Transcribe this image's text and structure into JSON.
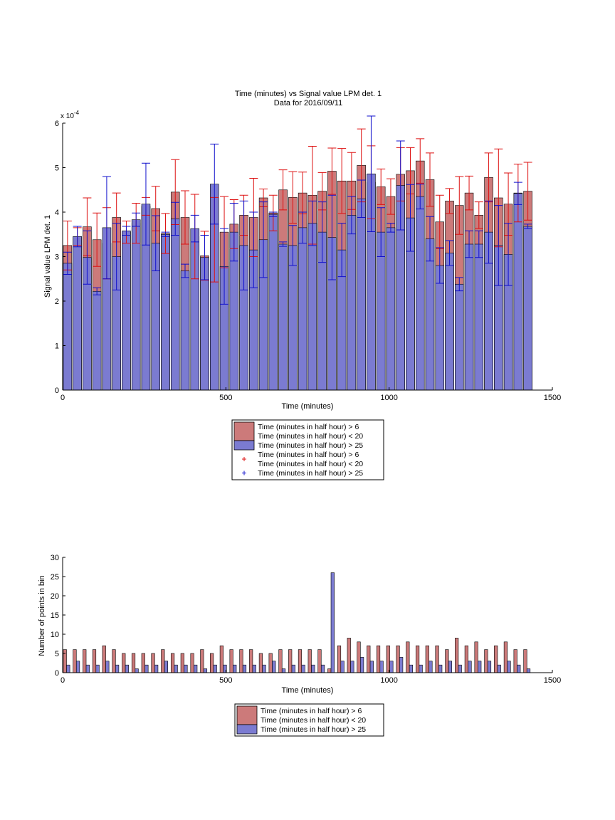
{
  "chart_data": [
    {
      "type": "bar",
      "title": "Time (minutes) vs Signal value LPM det. 1",
      "subtitle": "Data for 2016/09/11",
      "xlabel": "Time (minutes)",
      "ylabel": "Signal value LPM det. 1",
      "exponent_label": "x 10",
      "exponent_power": "-4",
      "xlim": [
        0,
        1500
      ],
      "ylim": [
        0,
        6
      ],
      "y_scale": 0.0001,
      "xticks": [
        "0",
        "500",
        "1000",
        "1500"
      ],
      "yticks": [
        "0",
        "1",
        "2",
        "3",
        "4",
        "5",
        "6"
      ],
      "grid": false,
      "legend_position": "below",
      "legend": [
        {
          "label_lines": [
            "Time (minutes in half hour) > 6",
            "Time (minutes in half hour) < 20"
          ],
          "color": "#cc7a7a",
          "kind": "bar"
        },
        {
          "label_lines": [
            "Time (minutes in half hour) > 25"
          ],
          "color": "#7b7bd1",
          "kind": "bar"
        },
        {
          "label_lines": [
            "Time (minutes in half hour) > 6",
            "Time (minutes in half hour) < 20"
          ],
          "color": "#dd1111",
          "kind": "errorbar"
        },
        {
          "label_lines": [
            "Time (minutes in half hour) > 25"
          ],
          "color": "#1111cc",
          "kind": "errorbar"
        }
      ],
      "x": [
        15,
        45,
        75,
        105,
        135,
        165,
        195,
        225,
        255,
        285,
        315,
        345,
        375,
        405,
        435,
        465,
        495,
        525,
        555,
        585,
        615,
        645,
        675,
        705,
        735,
        765,
        795,
        825,
        855,
        885,
        915,
        945,
        975,
        1005,
        1035,
        1065,
        1095,
        1125,
        1155,
        1185,
        1215,
        1245,
        1275,
        1305,
        1335,
        1365,
        1395,
        1425
      ],
      "series": [
        {
          "name": "Time (minutes in half hour) > 6 / < 20",
          "color": "#cc7a7a",
          "error_color": "#dd1111",
          "values": [
            3.25,
            3.45,
            3.67,
            3.38,
            3.3,
            3.88,
            3.55,
            3.75,
            4.13,
            4.08,
            3.52,
            4.45,
            3.88,
            3.45,
            3.02,
            3.38,
            3.55,
            3.73,
            3.93,
            3.88,
            4.32,
            3.98,
            4.5,
            4.33,
            4.43,
            4.38,
            4.47,
            4.92,
            4.7,
            4.7,
            5.05,
            4.67,
            4.57,
            4.35,
            4.85,
            4.93,
            5.15,
            4.73,
            3.78,
            4.25,
            4.15,
            4.43,
            3.93,
            4.78,
            4.32,
            4.18,
            4.43,
            4.47
          ],
          "errors": [
            0.55,
            0.2,
            0.65,
            0.6,
            0.8,
            0.55,
            0.25,
            0.45,
            0.2,
            0.5,
            0.45,
            0.73,
            0.6,
            0.95,
            0.55,
            0.95,
            0.8,
            0.55,
            0.45,
            0.88,
            0.2,
            0.4,
            0.45,
            0.58,
            0.47,
            1.1,
            0.42,
            0.52,
            0.73,
            0.64,
            0.82,
            0.82,
            0.4,
            0.4,
            0.6,
            0.52,
            0.5,
            0.6,
            0.6,
            0.28,
            0.65,
            0.38,
            0.3,
            0.55,
            1.1,
            0.7,
            0.65,
            0.65
          ]
        },
        {
          "name": "Time (minutes in half hour) > 25",
          "color": "#7b7bd1",
          "error_color": "#1111cc",
          "values": [
            2.85,
            3.45,
            2.98,
            2.22,
            3.65,
            3.0,
            3.58,
            3.83,
            4.18,
            3.3,
            3.5,
            3.85,
            2.68,
            3.63,
            2.98,
            4.63,
            2.78,
            3.55,
            3.25,
            3.15,
            3.38,
            3.95,
            3.28,
            3.25,
            3.65,
            3.75,
            3.55,
            3.43,
            3.15,
            3.93,
            4.3,
            4.86,
            3.55,
            3.65,
            4.6,
            3.87,
            4.35,
            3.4,
            2.8,
            3.08,
            2.38,
            3.28,
            3.28,
            3.55,
            3.25,
            3.05,
            4.42,
            3.68
          ],
          "errors": [
            0.25,
            0.23,
            0.6,
            0.08,
            1.15,
            0.75,
            0.1,
            0.15,
            0.92,
            0.62,
            0.05,
            0.37,
            0.15,
            0.3,
            0.5,
            0.9,
            0.85,
            0.65,
            1.0,
            0.85,
            0.85,
            0.05,
            0.05,
            0.45,
            0.35,
            0.5,
            0.68,
            0.95,
            0.6,
            0.42,
            0.42,
            1.3,
            0.55,
            0.1,
            1.0,
            0.75,
            0.28,
            0.5,
            0.4,
            0.28,
            0.15,
            0.3,
            0.3,
            0.7,
            0.9,
            0.7,
            0.25,
            0.05
          ]
        }
      ]
    },
    {
      "type": "bar",
      "xlabel": "Time (minutes)",
      "ylabel": "Number of points in bin",
      "xlim": [
        0,
        1500
      ],
      "ylim": [
        0,
        30
      ],
      "xticks": [
        "0",
        "500",
        "1000",
        "1500"
      ],
      "yticks": [
        "0",
        "5",
        "10",
        "15",
        "20",
        "25",
        "30"
      ],
      "grid": false,
      "legend_position": "below",
      "legend": [
        {
          "label_lines": [
            "Time (minutes in half hour) > 6",
            "Time (minutes in half hour) < 20"
          ],
          "color": "#cc7a7a",
          "kind": "bar"
        },
        {
          "label_lines": [
            "Time (minutes in half hour) > 25"
          ],
          "color": "#7b7bd1",
          "kind": "bar"
        }
      ],
      "series": [
        {
          "name": "Time (minutes in half hour) > 6 / < 20",
          "color": "#cc7a7a",
          "x": [
            7,
            37,
            67,
            97,
            127,
            157,
            187,
            217,
            247,
            277,
            307,
            337,
            367,
            397,
            427,
            457,
            487,
            517,
            547,
            577,
            607,
            637,
            667,
            697,
            727,
            757,
            787,
            817,
            847,
            877,
            907,
            937,
            967,
            997,
            1027,
            1057,
            1087,
            1117,
            1147,
            1177,
            1207,
            1237,
            1267,
            1297,
            1327,
            1357,
            1387,
            1417
          ],
          "values": [
            6,
            6,
            6,
            6,
            7,
            6,
            5,
            5,
            5,
            5,
            6,
            5,
            5,
            5,
            6,
            5,
            7,
            6,
            6,
            6,
            5,
            5,
            6,
            6,
            6,
            6,
            6,
            1,
            7,
            9,
            8,
            7,
            7,
            7,
            7,
            8,
            7,
            7,
            7,
            6,
            9,
            7,
            8,
            6,
            7,
            8,
            6,
            6
          ]
        },
        {
          "name": "Time (minutes in half hour) > 25",
          "color": "#7b7bd1",
          "x": [
            17,
            47,
            77,
            107,
            137,
            167,
            197,
            227,
            257,
            287,
            317,
            347,
            377,
            407,
            437,
            467,
            497,
            527,
            557,
            587,
            617,
            647,
            677,
            707,
            737,
            767,
            797,
            827,
            857,
            887,
            917,
            947,
            977,
            1007,
            1037,
            1067,
            1097,
            1127,
            1157,
            1187,
            1217,
            1247,
            1277,
            1307,
            1337,
            1367,
            1397,
            1427
          ],
          "values": [
            2,
            3,
            2,
            2,
            3,
            2,
            2,
            1,
            2,
            2,
            3,
            2,
            2,
            2,
            1,
            2,
            2,
            2,
            2,
            2,
            2,
            3,
            1,
            2,
            2,
            2,
            2,
            26,
            3,
            3,
            4,
            3,
            3,
            3,
            4,
            2,
            2,
            3,
            2,
            3,
            2,
            3,
            3,
            3,
            2,
            3,
            2,
            1
          ]
        }
      ]
    }
  ]
}
